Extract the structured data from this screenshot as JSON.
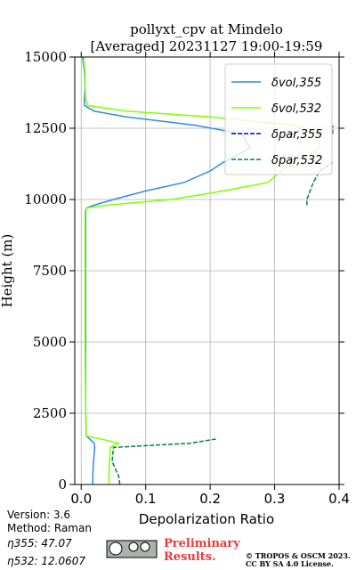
{
  "chart_data": {
    "type": "profile",
    "title": "pollyxt_cpv at Mindelo",
    "subtitle": "[Averaged] 20231127 19:00-19:59",
    "xlabel": "Depolarization Ratio",
    "ylabel": "Height (m)",
    "xlim": [
      -0.01,
      0.4
    ],
    "ylim": [
      0,
      15000
    ],
    "xticks": [
      {
        "value": 0,
        "label": "0.0"
      },
      0.1,
      0.2,
      0.3,
      0.4
    ],
    "yticks": [
      0,
      2500,
      5000,
      7500,
      10000,
      12500,
      15000
    ],
    "grid": true,
    "legend": "upper right",
    "y": [
      0,
      300,
      800,
      1300,
      1450,
      1600,
      1700,
      2500,
      5000,
      7500,
      9600,
      9700,
      9800,
      10000,
      10300,
      10600,
      11000,
      11300,
      11800,
      12300,
      12600,
      12900,
      13100,
      13300,
      13500,
      14000,
      14500,
      14800,
      15000
    ],
    "series": [
      {
        "name": "δvol,355",
        "color": "#2b8ee0",
        "dash": false,
        "values": [
          0.018,
          0.018,
          0.019,
          0.021,
          0.02,
          0.013,
          0.008,
          0.007,
          0.007,
          0.007,
          0.007,
          0.008,
          0.02,
          0.05,
          0.1,
          0.16,
          0.2,
          0.22,
          0.262,
          0.25,
          0.178,
          0.07,
          0.02,
          0.005,
          0.005,
          0.006,
          0.005,
          0.003,
          0.002
        ]
      },
      {
        "name": "δvol,532",
        "color": "#80ff00",
        "dash": false,
        "values": [
          0.043,
          0.043,
          0.044,
          0.045,
          0.058,
          0.03,
          0.008,
          0.007,
          0.006,
          0.006,
          0.006,
          0.008,
          0.04,
          0.14,
          0.22,
          0.29,
          0.31,
          0.33,
          0.37,
          0.37,
          0.33,
          0.2,
          0.07,
          0.01,
          0.007,
          0.006,
          0.006,
          0.004,
          0.004
        ]
      },
      {
        "name": "δpar,355",
        "color": "#0000cc",
        "dash": true,
        "values": [
          null,
          null,
          null,
          null,
          null,
          null,
          null,
          null,
          null,
          null,
          null,
          null,
          null,
          null,
          null,
          null,
          null,
          null,
          null,
          null,
          null,
          null,
          null,
          null,
          null,
          null,
          null,
          null,
          null
        ]
      },
      {
        "name": "δpar,532",
        "color": "#008040",
        "dash": true,
        "values": [
          0.06,
          0.058,
          0.048,
          0.05,
          0.17,
          0.21,
          null,
          null,
          null,
          null,
          null,
          null,
          0.35,
          0.35,
          0.355,
          0.36,
          0.37,
          0.39,
          null,
          0.39,
          0.39,
          null,
          null,
          null,
          null,
          null,
          null,
          null,
          null
        ]
      }
    ]
  },
  "footer": {
    "version": "Version: 3.6",
    "method": "Method: Raman",
    "eta355": "η355:  47.07",
    "eta532": "η532: 12.0607",
    "preliminary": "Preliminary",
    "results": "Results.",
    "copyright": "© TROPOS & OSCM 2023.",
    "license": "CC BY SA 4.0 License."
  }
}
